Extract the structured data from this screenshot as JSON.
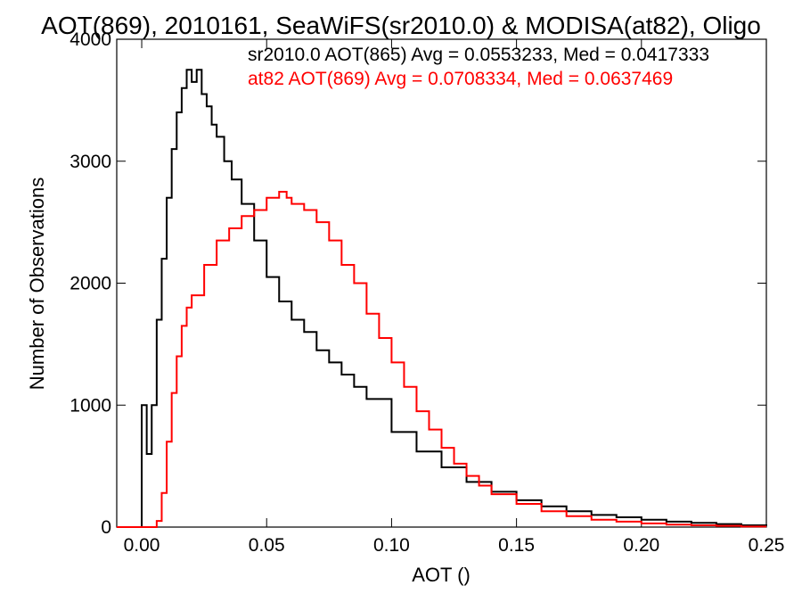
{
  "chart_data": {
    "type": "line",
    "title": "AOT(869), 2010161, SeaWiFS(sr2010.0) & MODISA(at82), Oligo",
    "xlabel": "AOT ()",
    "ylabel": "Number of Observations",
    "xlim": [
      -0.01,
      0.25
    ],
    "ylim": [
      0,
      4000
    ],
    "xticks": [
      0.0,
      0.05,
      0.1,
      0.15,
      0.2,
      0.25
    ],
    "xtick_labels": [
      "0.00",
      "0.05",
      "0.10",
      "0.15",
      "0.20",
      "0.25"
    ],
    "yticks": [
      0,
      1000,
      2000,
      3000,
      4000
    ],
    "ytick_labels": [
      "0",
      "1000",
      "2000",
      "3000",
      "4000"
    ],
    "grid": false,
    "annotations": [
      {
        "text": "sr2010.0 AOT(865) Avg = 0.0553233, Med = 0.0417333",
        "color": "#000000"
      },
      {
        "text": "at82 AOT(869) Avg = 0.0708334, Med = 0.0637469",
        "color": "#ff0000"
      }
    ],
    "series": [
      {
        "name": "sr2010.0 AOT(865)",
        "color": "#000000",
        "style": "step",
        "x": [
          -0.01,
          -0.001,
          0.0,
          0.002,
          0.004,
          0.006,
          0.008,
          0.01,
          0.012,
          0.014,
          0.016,
          0.018,
          0.02,
          0.022,
          0.024,
          0.026,
          0.028,
          0.03,
          0.033,
          0.036,
          0.04,
          0.045,
          0.05,
          0.055,
          0.06,
          0.065,
          0.07,
          0.075,
          0.08,
          0.085,
          0.09,
          0.1,
          0.11,
          0.12,
          0.13,
          0.14,
          0.15,
          0.16,
          0.17,
          0.18,
          0.19,
          0.2,
          0.21,
          0.22,
          0.23,
          0.24,
          0.25
        ],
        "y": [
          0,
          0,
          1000,
          600,
          1000,
          1700,
          2200,
          2700,
          3100,
          3400,
          3600,
          3750,
          3650,
          3750,
          3550,
          3450,
          3300,
          3200,
          3000,
          2850,
          2650,
          2350,
          2050,
          1850,
          1700,
          1600,
          1450,
          1350,
          1250,
          1150,
          1050,
          780,
          620,
          490,
          370,
          290,
          220,
          170,
          130,
          100,
          80,
          60,
          45,
          35,
          25,
          15,
          10
        ]
      },
      {
        "name": "at82 AOT(869)",
        "color": "#ff0000",
        "style": "step",
        "x": [
          -0.01,
          0.006,
          0.008,
          0.01,
          0.012,
          0.014,
          0.016,
          0.018,
          0.02,
          0.025,
          0.03,
          0.035,
          0.04,
          0.045,
          0.05,
          0.055,
          0.058,
          0.06,
          0.065,
          0.07,
          0.075,
          0.08,
          0.085,
          0.09,
          0.095,
          0.1,
          0.105,
          0.11,
          0.115,
          0.12,
          0.125,
          0.13,
          0.135,
          0.14,
          0.15,
          0.16,
          0.17,
          0.18,
          0.19,
          0.2,
          0.21,
          0.22,
          0.23,
          0.24,
          0.25
        ],
        "y": [
          0,
          50,
          280,
          700,
          1100,
          1400,
          1650,
          1800,
          1900,
          2150,
          2350,
          2450,
          2550,
          2600,
          2700,
          2750,
          2700,
          2650,
          2600,
          2500,
          2350,
          2150,
          2000,
          1750,
          1550,
          1350,
          1150,
          950,
          800,
          650,
          520,
          420,
          340,
          270,
          190,
          130,
          90,
          60,
          45,
          30,
          20,
          15,
          10,
          5,
          5
        ]
      }
    ]
  }
}
